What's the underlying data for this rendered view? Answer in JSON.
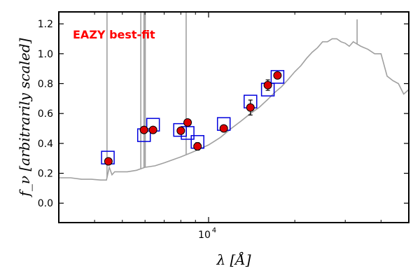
{
  "chart_data": {
    "type": "scatter",
    "title": "",
    "annotation": "EAZY best-fit",
    "annotation_color": "#ff0000",
    "xlabel": "λ [Å]",
    "ylabel": "f_ν [arbitrarily scaled]",
    "xscale": "log",
    "xlim": [
      3000,
      50000
    ],
    "ylim": [
      -0.13,
      1.28
    ],
    "yticks": [
      0.0,
      0.2,
      0.4,
      0.6,
      0.8,
      1.0,
      1.2
    ],
    "ytick_labels": [
      "0.0",
      "0.2",
      "0.4",
      "0.6",
      "0.8",
      "1.0",
      "1.2"
    ],
    "xtick_major": [
      10000
    ],
    "xtick_major_labels": [
      "10"
    ],
    "xtick_major_exponents": [
      "4"
    ],
    "xtick_minor": [
      4000,
      5000,
      6000,
      7000,
      8000,
      9000,
      20000,
      30000,
      40000
    ],
    "grid": false,
    "colors": {
      "template": "#a0a0a0",
      "model_box": "#0000dd",
      "observed_fill": "#dd0000",
      "observed_edge": "#000000"
    },
    "series": [
      {
        "kind": "template",
        "x": [
          3000,
          3300,
          3600,
          3900,
          4200,
          4400,
          4500,
          4600,
          4700,
          5200,
          5600,
          6000,
          6500,
          7000,
          7500,
          8000,
          8500,
          9000,
          10000,
          11000,
          12000,
          13000,
          14000,
          15000,
          16000,
          17000,
          18000,
          19000,
          20000,
          21000,
          22000,
          23000,
          24000,
          25000,
          26000,
          27000,
          28000,
          29000,
          30000,
          31000,
          32000,
          34000,
          36000,
          38000,
          40000,
          42000,
          44000,
          46000,
          48000,
          50000
        ],
        "y": [
          0.17,
          0.17,
          0.16,
          0.16,
          0.155,
          0.155,
          0.24,
          0.19,
          0.21,
          0.21,
          0.22,
          0.24,
          0.25,
          0.27,
          0.29,
          0.31,
          0.33,
          0.35,
          0.39,
          0.44,
          0.5,
          0.55,
          0.6,
          0.64,
          0.69,
          0.74,
          0.78,
          0.83,
          0.88,
          0.92,
          0.97,
          1.01,
          1.04,
          1.08,
          1.08,
          1.1,
          1.1,
          1.08,
          1.07,
          1.05,
          1.08,
          1.05,
          1.03,
          1.0,
          1.0,
          0.85,
          0.82,
          0.8,
          0.73,
          0.76
        ]
      },
      {
        "kind": "emission_lines",
        "lines": [
          {
            "x": 4420,
            "peak": 1.28
          },
          {
            "x": 5800,
            "peak": 1.28
          },
          {
            "x": 5950,
            "peak": 1.28
          },
          {
            "x": 6010,
            "peak": 1.28
          },
          {
            "x": 8350,
            "peak": 1.28
          },
          {
            "x": 33000,
            "peak": 1.23
          }
        ]
      },
      {
        "kind": "model_fluxes",
        "x": [
          4450,
          5950,
          6400,
          7950,
          8450,
          9150,
          11300,
          14000,
          16100,
          17400
        ],
        "y": [
          0.305,
          0.455,
          0.525,
          0.49,
          0.47,
          0.41,
          0.53,
          0.68,
          0.76,
          0.845
        ]
      },
      {
        "kind": "observed",
        "x": [
          4470,
          5950,
          6400,
          8000,
          8450,
          9150,
          11300,
          14000,
          16100,
          17400
        ],
        "y": [
          0.28,
          0.49,
          0.49,
          0.485,
          0.54,
          0.38,
          0.5,
          0.64,
          0.79,
          0.855
        ],
        "yerr": [
          0.005,
          0.01,
          0.005,
          0.02,
          0.005,
          0.025,
          0.02,
          0.05,
          0.035,
          0.015
        ]
      }
    ]
  }
}
